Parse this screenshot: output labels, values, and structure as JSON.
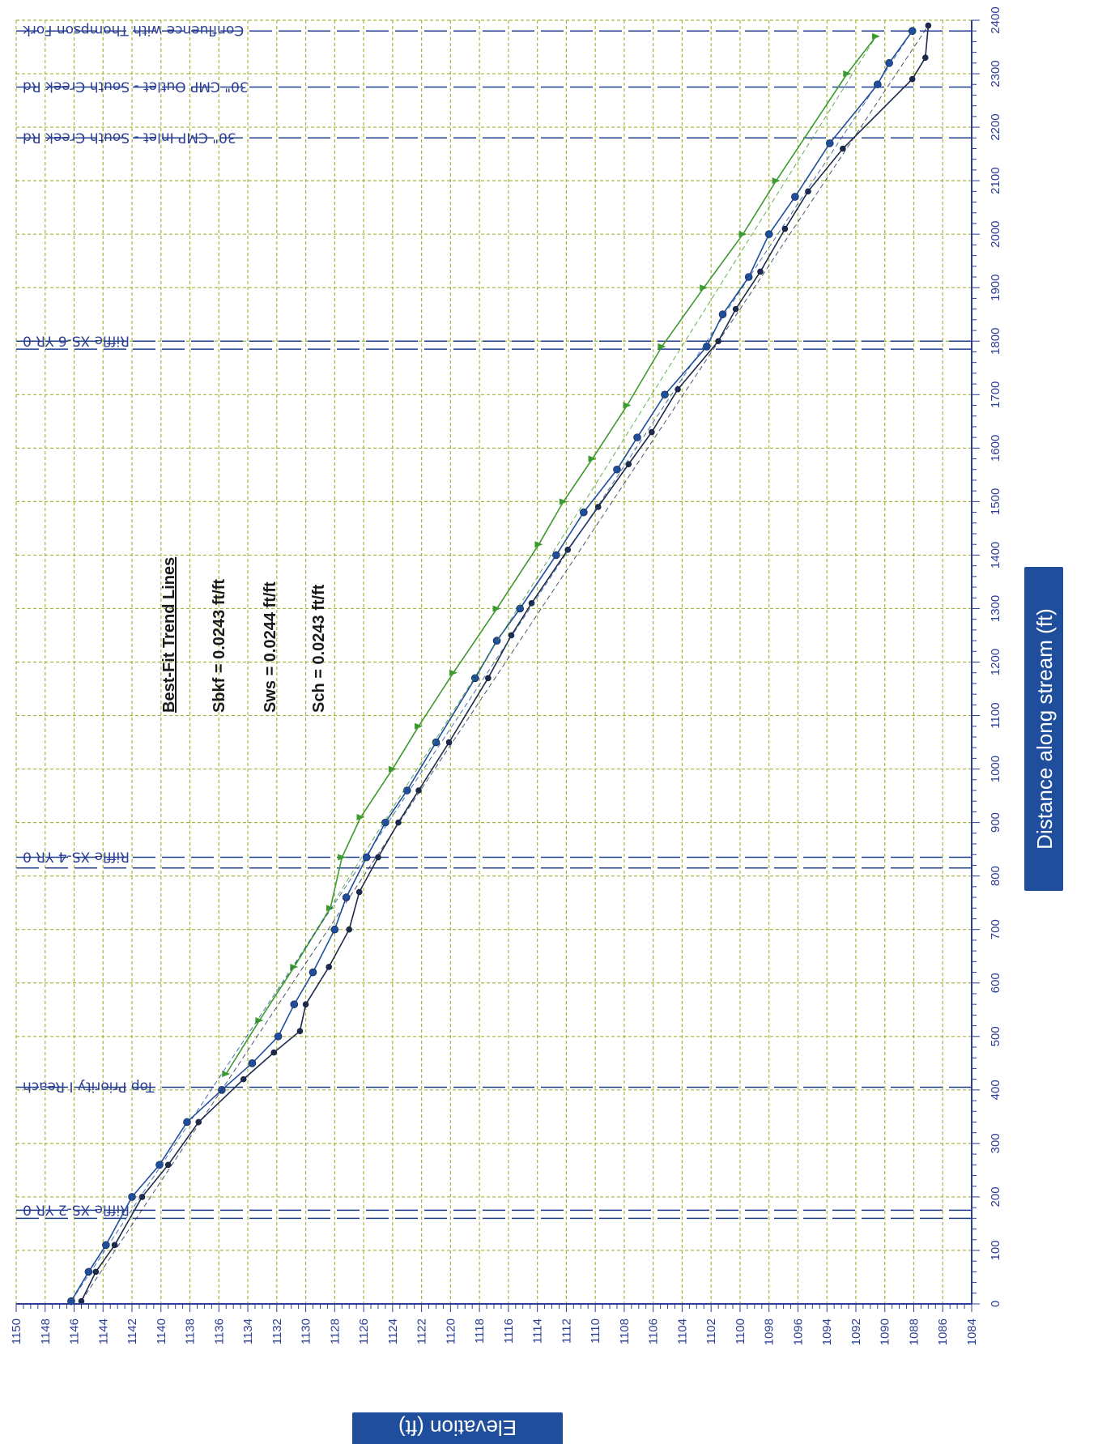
{
  "chart_data": {
    "type": "line",
    "orientation": "rotated-90-clockwise",
    "xlabel": "Distance along stream (ft)",
    "ylabel": "Elevation (ft)",
    "xlim": [
      0,
      2400
    ],
    "ylim": [
      1084,
      1150
    ],
    "x_ticks": [
      0,
      100,
      200,
      300,
      400,
      500,
      600,
      700,
      800,
      900,
      1000,
      1100,
      1200,
      1300,
      1400,
      1500,
      1600,
      1700,
      1800,
      1900,
      2000,
      2100,
      2200,
      2300,
      2400
    ],
    "y_ticks": [
      1084,
      1086,
      1088,
      1090,
      1092,
      1094,
      1096,
      1098,
      1100,
      1102,
      1104,
      1106,
      1108,
      1110,
      1112,
      1114,
      1116,
      1118,
      1120,
      1122,
      1124,
      1126,
      1128,
      1130,
      1132,
      1134,
      1136,
      1138,
      1140,
      1142,
      1144,
      1146,
      1148,
      1150
    ],
    "grid": true,
    "annotation": {
      "heading": "Best-Fit Trend Lines",
      "lines": [
        "Sbkf = 0.0243 ft/ft",
        "Sws = 0.0244 ft/ft",
        "Sch = 0.0243 ft/ft"
      ]
    },
    "reference_lines": [
      {
        "x": 160,
        "label": ""
      },
      {
        "x": 175,
        "label": "Riffle XS-2 YR 0"
      },
      {
        "x": 405,
        "label": "Top Priority I Reach"
      },
      {
        "x": 815,
        "label": ""
      },
      {
        "x": 835,
        "label": "Riffle XS-4 YR 0"
      },
      {
        "x": 1785,
        "label": ""
      },
      {
        "x": 1800,
        "label": "Riffle XS-6 YR 0"
      },
      {
        "x": 2180,
        "label": "30\" CMP Inlet - South Creek Rd"
      },
      {
        "x": 2275,
        "label": "30\" CMP Outlet - South Creek Rd"
      },
      {
        "x": 2380,
        "label": "Confluence with Thompson Fork"
      }
    ],
    "series": [
      {
        "color": "#3c9a2e",
        "x": [
          430,
          530,
          630,
          740,
          835,
          910,
          1000,
          1080,
          1180,
          1300,
          1420,
          1500,
          1580,
          1680,
          1790,
          1900,
          2000,
          2100,
          2300,
          2370
        ],
        "y": [
          1135.5,
          1133.2,
          1130.8,
          1128.3,
          1127.5,
          1126.2,
          1124.0,
          1122.2,
          1119.8,
          1116.8,
          1113.9,
          1112.2,
          1110.2,
          1107.8,
          1105.4,
          1102.5,
          1099.8,
          1097.5,
          1092.6,
          1090.6
        ]
      },
      {
        "color": "#1f4e9c",
        "x": [
          5,
          60,
          110,
          200,
          260,
          340,
          400,
          450,
          500,
          560,
          620,
          700,
          760,
          835,
          900,
          960,
          1050,
          1170,
          1240,
          1300,
          1400,
          1480,
          1560,
          1620,
          1700,
          1790,
          1850,
          1920,
          2000,
          2070,
          2170,
          2280,
          2320,
          2380
        ],
        "y": [
          1146.2,
          1145.0,
          1143.8,
          1142.0,
          1140.1,
          1138.2,
          1135.8,
          1133.7,
          1131.9,
          1130.8,
          1129.5,
          1128.0,
          1127.2,
          1125.8,
          1124.5,
          1123.0,
          1121.0,
          1118.3,
          1116.8,
          1115.2,
          1112.7,
          1110.8,
          1108.5,
          1107.1,
          1105.2,
          1102.3,
          1101.2,
          1099.4,
          1098.0,
          1096.2,
          1093.8,
          1090.5,
          1089.7,
          1088.1
        ]
      },
      {
        "color": "#1e2a4a",
        "x": [
          5,
          60,
          110,
          200,
          260,
          340,
          420,
          470,
          510,
          560,
          630,
          700,
          770,
          835,
          900,
          960,
          1050,
          1170,
          1250,
          1310,
          1410,
          1490,
          1570,
          1630,
          1710,
          1800,
          1860,
          1930,
          2010,
          2080,
          2160,
          2290,
          2330,
          2390
        ],
        "y": [
          1145.5,
          1144.5,
          1143.2,
          1141.3,
          1139.5,
          1137.4,
          1134.3,
          1132.2,
          1130.4,
          1130.0,
          1128.4,
          1127.0,
          1126.3,
          1125.0,
          1123.6,
          1122.2,
          1120.1,
          1117.4,
          1115.8,
          1114.4,
          1111.9,
          1109.8,
          1107.7,
          1106.1,
          1104.3,
          1101.5,
          1100.3,
          1098.6,
          1096.9,
          1095.3,
          1092.9,
          1088.1,
          1087.2,
          1087.0
        ]
      }
    ]
  }
}
